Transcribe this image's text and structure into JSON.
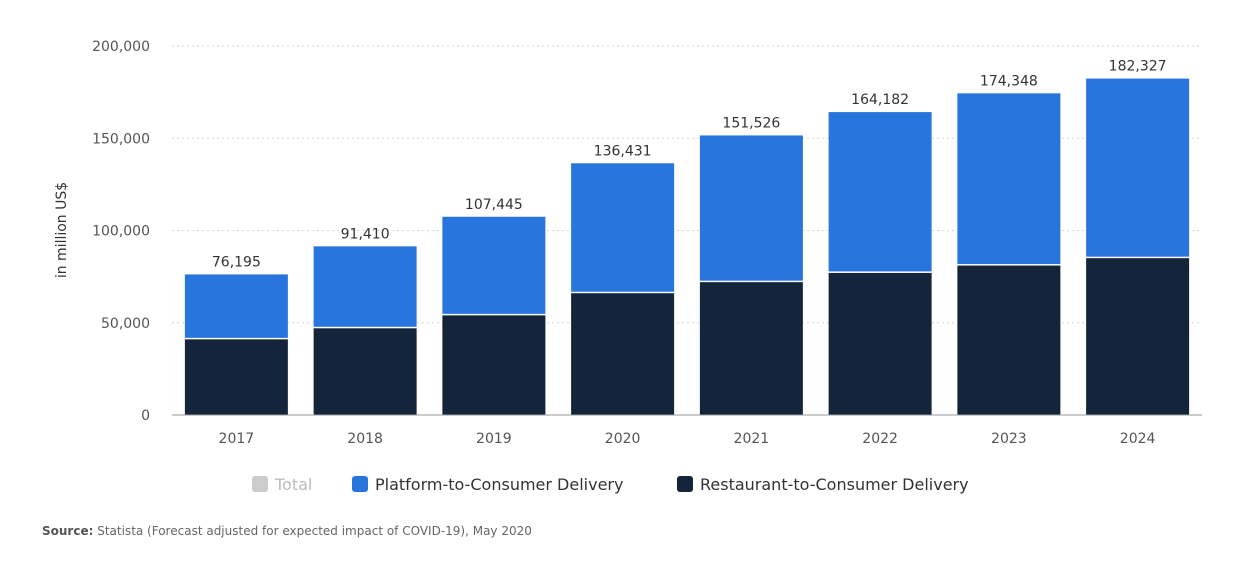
{
  "chart_data": {
    "type": "bar",
    "stacked": true,
    "categories": [
      "2017",
      "2018",
      "2019",
      "2020",
      "2021",
      "2022",
      "2023",
      "2024"
    ],
    "series": [
      {
        "name": "Total",
        "color": "#cccccc",
        "values": [
          76195,
          91410,
          107445,
          136431,
          151526,
          164182,
          174348,
          182327
        ],
        "disabled": true
      },
      {
        "name": "Platform-to-Consumer Delivery",
        "color": "#2876dd",
        "values": [
          35195,
          44410,
          53445,
          70431,
          79526,
          87182,
          93348,
          97327
        ]
      },
      {
        "name": "Restaurant-to-Consumer Delivery",
        "color": "#14253b",
        "values": [
          41000,
          47000,
          54000,
          66000,
          72000,
          77000,
          81000,
          85000
        ]
      }
    ],
    "totals": [
      "76,195",
      "91,410",
      "107,445",
      "136,431",
      "151,526",
      "164,182",
      "174,348",
      "182,327"
    ],
    "ylabel": "in million US$",
    "ylim": [
      0,
      200000
    ],
    "yticks": [
      0,
      50000,
      100000,
      150000,
      200000
    ],
    "ytick_labels": [
      "0",
      "50,000",
      "100,000",
      "150,000",
      "200,000"
    ],
    "grid": true,
    "legend_position": "bottom"
  },
  "source": {
    "label": "Source:",
    "text": " Statista (Forecast adjusted for expected impact of COVID-19), May 2020"
  }
}
